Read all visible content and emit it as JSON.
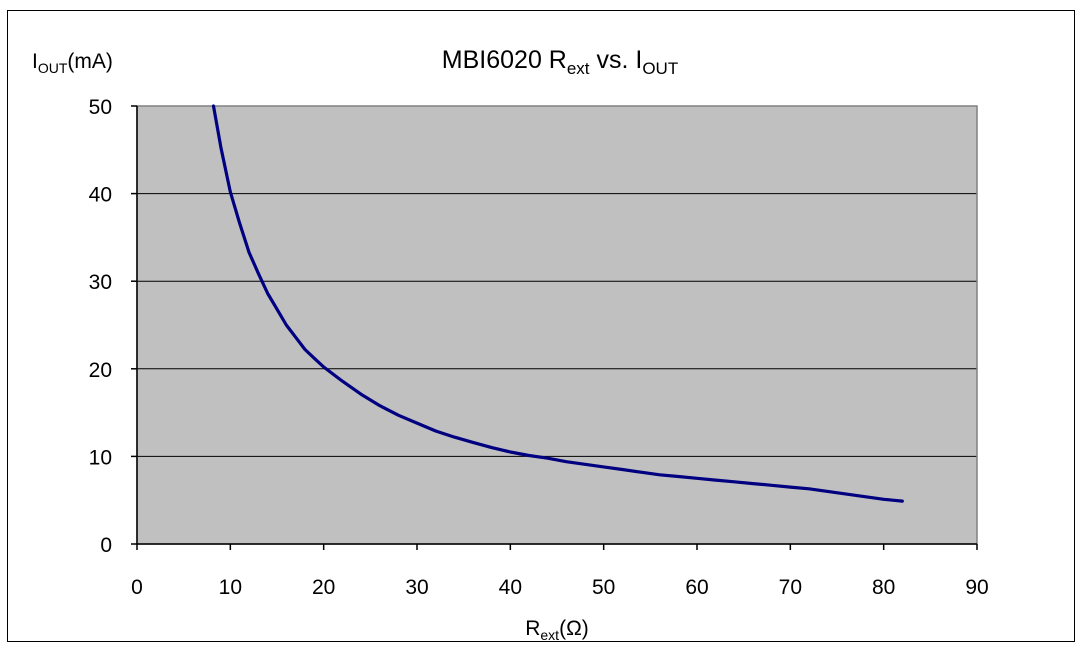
{
  "chart_data": {
    "type": "line",
    "title": {
      "main": "MBI6020 R",
      "main_sub": "ext",
      "mid": " vs. I",
      "end_sub": "OUT"
    },
    "ylabel": {
      "main": "I",
      "sub": "OUT",
      "unit": "(mA)"
    },
    "xlabel": {
      "main": "R",
      "sub": "ext",
      "unit": "(Ω)"
    },
    "xlim": [
      0,
      90
    ],
    "ylim": [
      0,
      50
    ],
    "xticks": [
      0,
      10,
      20,
      30,
      40,
      50,
      60,
      70,
      80,
      90
    ],
    "yticks": [
      0,
      10,
      20,
      30,
      40,
      50
    ],
    "grid": "horizontal",
    "plot_background": "#c0c0c0",
    "series": [
      {
        "color": "#000080",
        "x": [
          8.2,
          9,
          10,
          11,
          12,
          13,
          14,
          15,
          16,
          17,
          18,
          19,
          20,
          22,
          24,
          26,
          28,
          30,
          32,
          34,
          36,
          38,
          40,
          42,
          44,
          46,
          48,
          50,
          52,
          54,
          56,
          58,
          60,
          62,
          64,
          66,
          68,
          70,
          72,
          74,
          76,
          78,
          80,
          82
        ],
        "y": [
          50.0,
          45.2,
          40.2,
          36.6,
          33.3,
          30.9,
          28.6,
          26.8,
          25.0,
          23.6,
          22.2,
          21.2,
          20.2,
          18.6,
          17.1,
          15.8,
          14.7,
          13.8,
          12.9,
          12.2,
          11.6,
          11.0,
          10.5,
          10.1,
          9.8,
          9.4,
          9.1,
          8.8,
          8.5,
          8.2,
          7.9,
          7.7,
          7.5,
          7.3,
          7.1,
          6.9,
          6.7,
          6.5,
          6.3,
          6.0,
          5.7,
          5.4,
          5.1,
          4.9
        ]
      }
    ]
  }
}
